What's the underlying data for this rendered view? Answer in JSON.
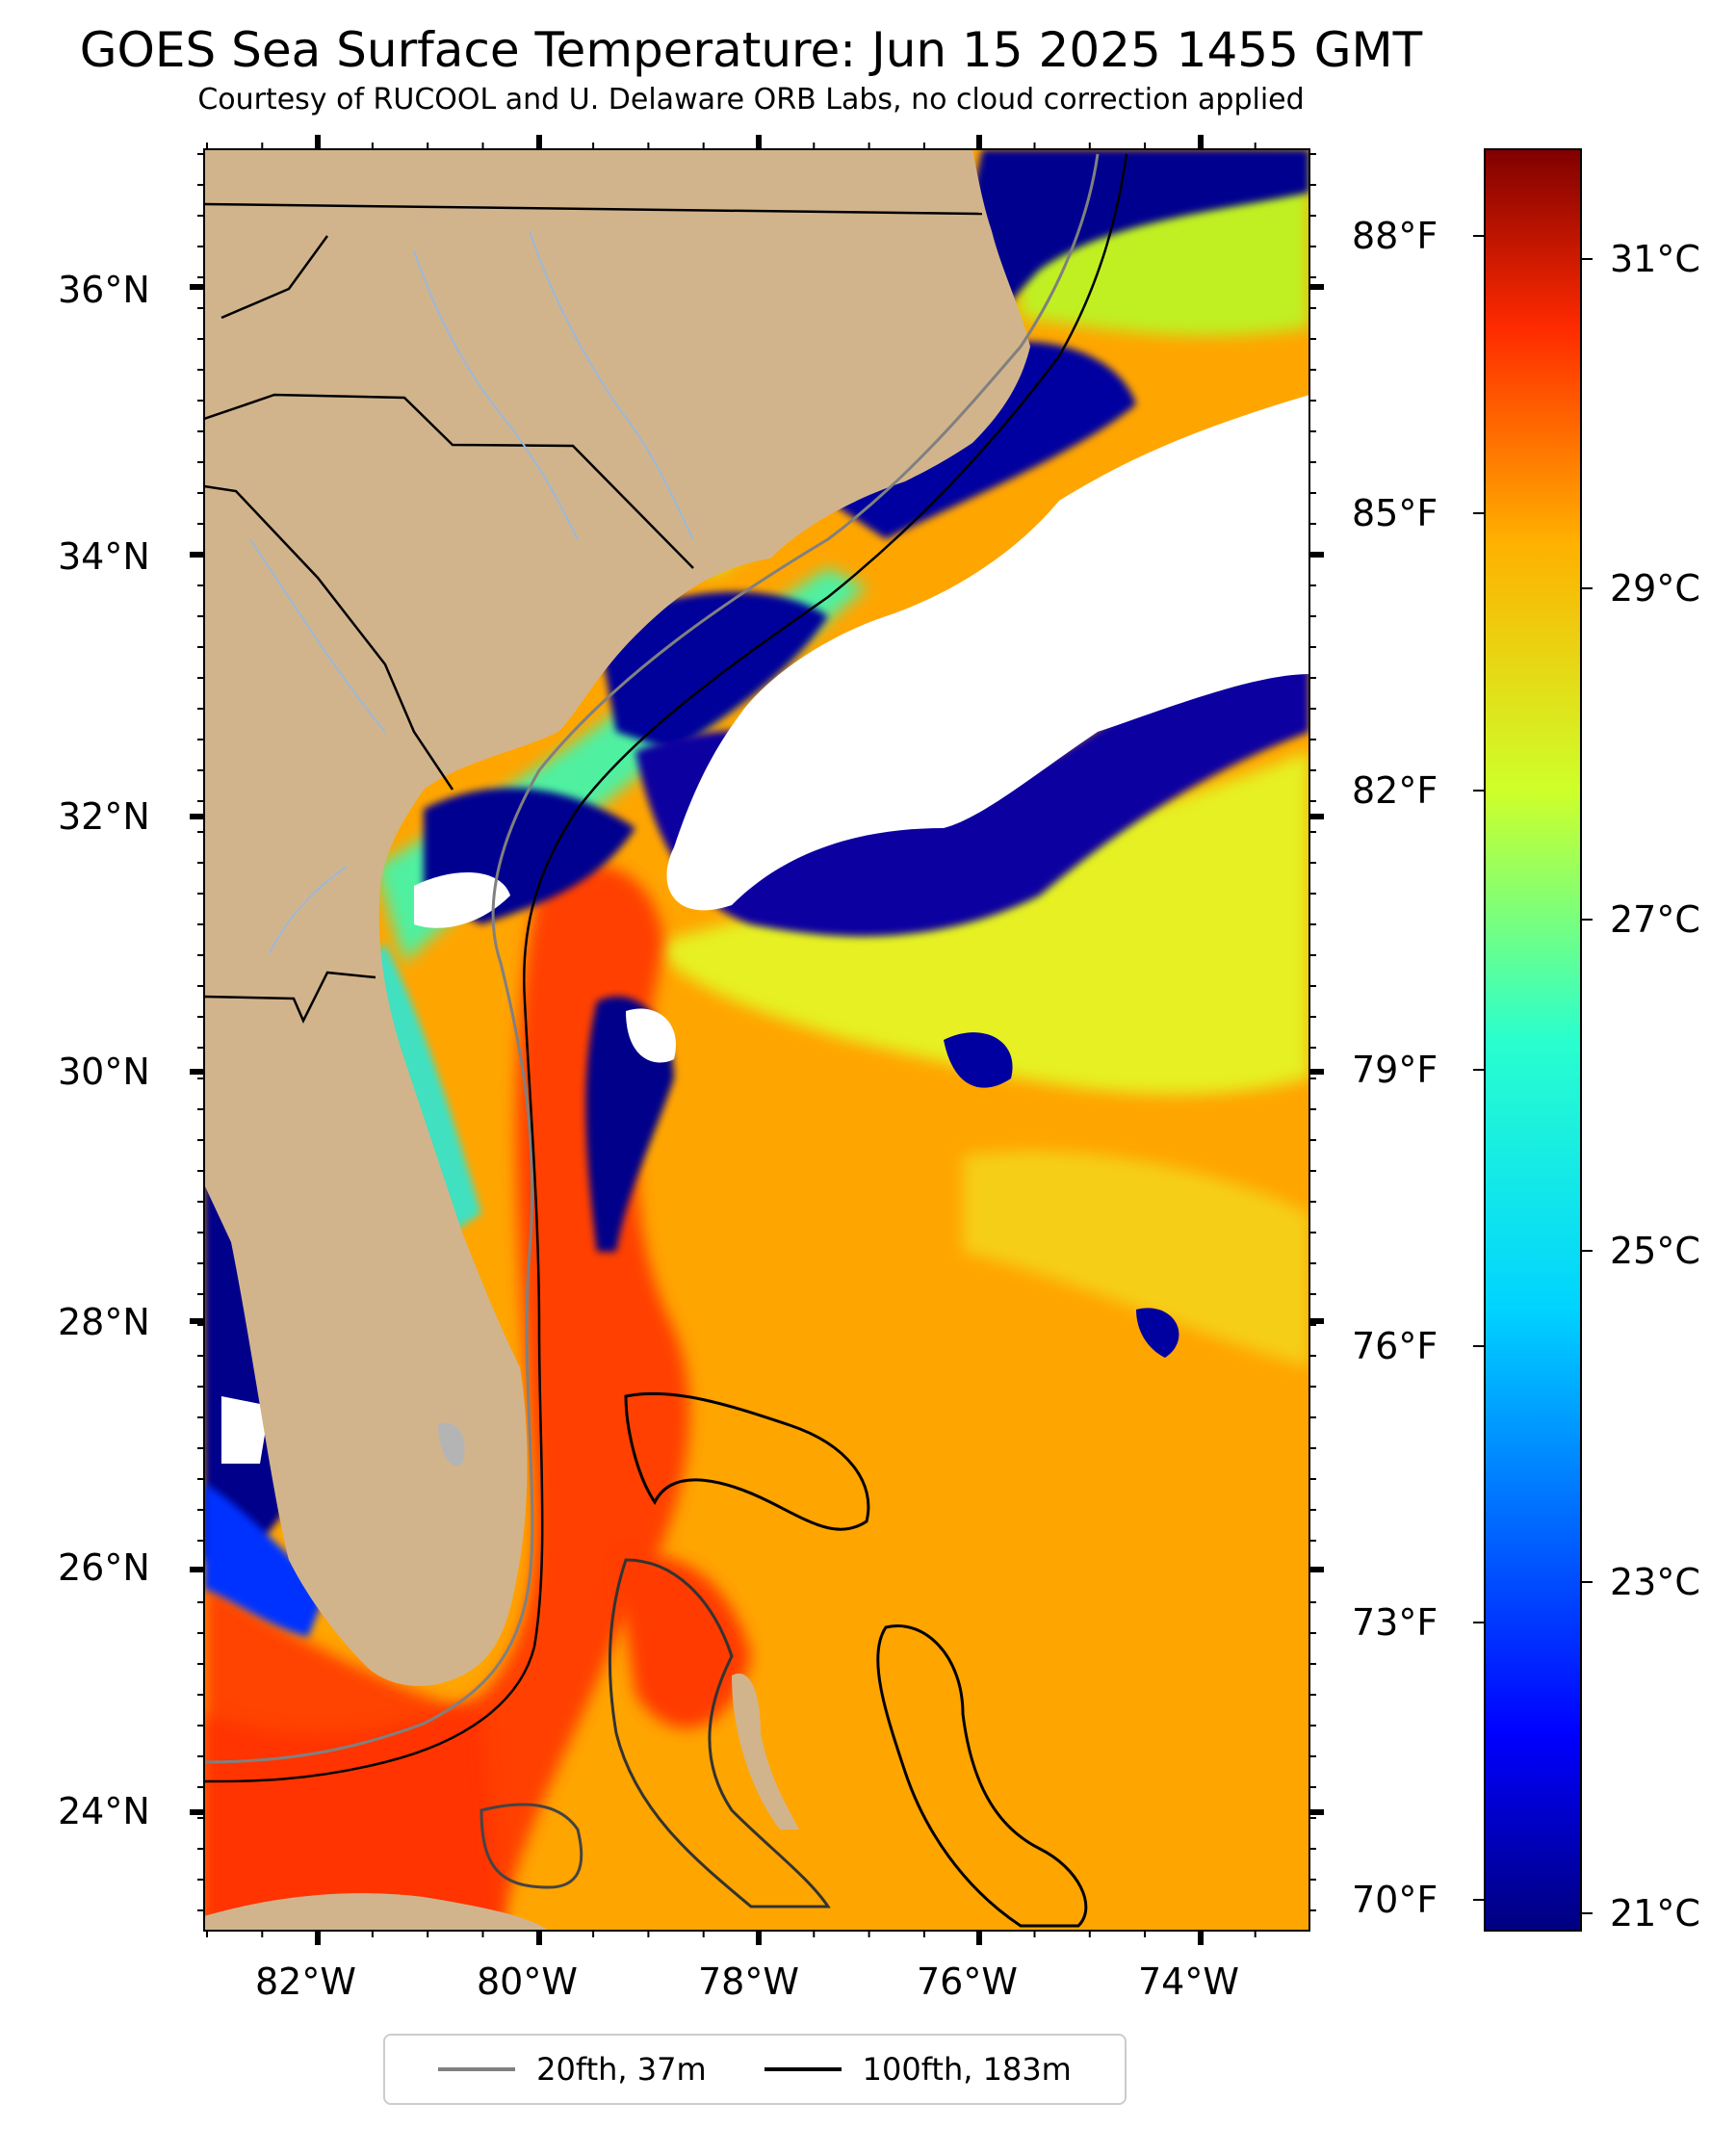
{
  "title": "GOES Sea Surface Temperature: Jun 15 2025 1455 GMT",
  "subtitle": "Courtesy of RUCOOL and U. Delaware ORB Labs, no cloud correction applied",
  "map": {
    "lat_labels": [
      "36°N",
      "34°N",
      "32°N",
      "30°N",
      "28°N",
      "26°N",
      "24°N"
    ],
    "lon_labels": [
      "82°W",
      "80°W",
      "78°W",
      "76°W",
      "74°W"
    ],
    "fahrenheit_labels": [
      "88°F",
      "85°F",
      "82°F",
      "79°F",
      "76°F",
      "73°F",
      "70°F"
    ],
    "colors": {
      "land": "#d2b48c",
      "cloud": "#ffffff",
      "rivers": "#9cb8d8",
      "isobath_20fth": "#808080",
      "isobath_100fth": "#000000"
    }
  },
  "colorbar": {
    "celsius_labels": [
      "31°C",
      "29°C",
      "27°C",
      "25°C",
      "23°C",
      "21°C"
    ],
    "colormap": "jet"
  },
  "legend": [
    {
      "label": "20fth, 37m",
      "color": "#808080"
    },
    {
      "label": "100fth, 183m",
      "color": "#000000"
    }
  ]
}
